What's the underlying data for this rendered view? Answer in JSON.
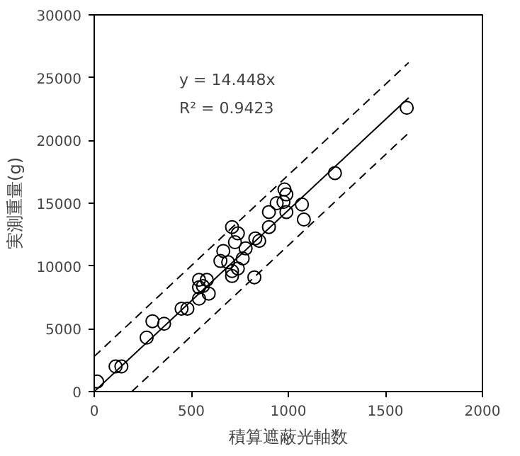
{
  "chart_data": {
    "type": "scatter",
    "xlabel": "積算遮蔽光軸数",
    "ylabel": "実測重量(g)",
    "xlim": [
      0,
      2000
    ],
    "ylim": [
      0,
      30000
    ],
    "xticks": [
      0,
      500,
      1000,
      1500,
      2000
    ],
    "yticks": [
      0,
      5000,
      10000,
      15000,
      20000,
      25000,
      30000
    ],
    "grid": false,
    "series": [
      {
        "color": "#000000",
        "marker": "circle",
        "x": [
          15,
          110,
          140,
          270,
          300,
          360,
          450,
          480,
          540,
          540,
          540,
          580,
          590,
          560,
          665,
          650,
          690,
          710,
          710,
          740,
          765,
          780,
          725,
          710,
          740,
          825,
          830,
          850,
          900,
          900,
          940,
          975,
          990,
          980,
          990,
          1070,
          1080,
          1240,
          1610
        ],
        "values": [
          800,
          2000,
          2000,
          4300,
          5600,
          5400,
          6600,
          6600,
          7400,
          8300,
          8900,
          8900,
          7800,
          8400,
          11200,
          10400,
          10300,
          9600,
          9200,
          9800,
          10600,
          11400,
          11900,
          13100,
          12600,
          9100,
          12200,
          12000,
          13100,
          14300,
          15000,
          15100,
          15700,
          16100,
          14300,
          14900,
          13700,
          17400,
          22600
        ]
      },
      {
        "type": "line",
        "color": "#000000",
        "line_style": "solid",
        "x": [
          0,
          1620
        ],
        "values": [
          0,
          23400
        ]
      },
      {
        "type": "line",
        "color": "#000000",
        "line_style": "dashed",
        "x": [
          0,
          1620
        ],
        "values": [
          2800,
          26200
        ]
      },
      {
        "type": "line",
        "color": "#000000",
        "line_style": "dashed",
        "x": [
          194,
          1620
        ],
        "values": [
          0,
          20600
        ]
      }
    ],
    "annotations": [
      "y = 14.448x",
      "R² = 0.9423"
    ]
  }
}
